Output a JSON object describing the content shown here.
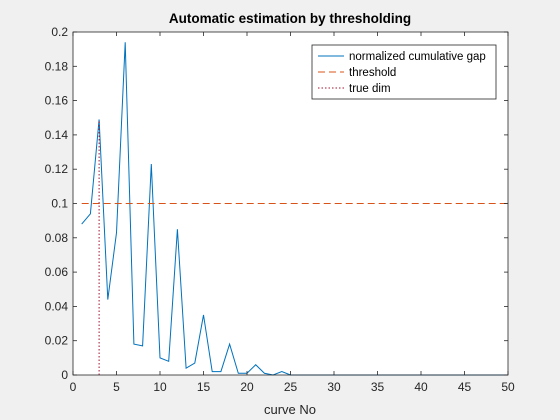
{
  "chart_data": {
    "type": "line",
    "title": "Automatic estimation by thresholding",
    "xlabel": "curve No",
    "ylabel": "",
    "xlim": [
      0,
      50
    ],
    "ylim": [
      0,
      0.2
    ],
    "xticks": [
      0,
      5,
      10,
      15,
      20,
      25,
      30,
      35,
      40,
      45,
      50
    ],
    "xtick_labels": [
      "0",
      "5",
      "10",
      "15",
      "20",
      "25",
      "30",
      "35",
      "40",
      "45",
      "50"
    ],
    "yticks": [
      0,
      0.02,
      0.04,
      0.06,
      0.08,
      0.1,
      0.12,
      0.14,
      0.16,
      0.18,
      0.2
    ],
    "ytick_labels": [
      "0",
      "0.02",
      "0.04",
      "0.06",
      "0.08",
      "0.1",
      "0.12",
      "0.14",
      "0.16",
      "0.18",
      "0.2"
    ],
    "grid": false,
    "legend_position": "top-right",
    "series": [
      {
        "name": "normalized cumulative gap",
        "style": "solid",
        "color": "#0072bd",
        "x": [
          1,
          2,
          3,
          4,
          5,
          6,
          7,
          8,
          9,
          10,
          11,
          12,
          13,
          14,
          15,
          16,
          17,
          18,
          19,
          20,
          21,
          22,
          23,
          24,
          25,
          26,
          27,
          28,
          29,
          30,
          31,
          32,
          33,
          34,
          35,
          36,
          37,
          38,
          39,
          40,
          41,
          42,
          43,
          44,
          45,
          46,
          47,
          48,
          49,
          50
        ],
        "y": [
          0.088,
          0.094,
          0.149,
          0.044,
          0.083,
          0.194,
          0.018,
          0.017,
          0.123,
          0.01,
          0.008,
          0.085,
          0.004,
          0.007,
          0.035,
          0.002,
          0.002,
          0.018,
          0.001,
          0.001,
          0.006,
          0.001,
          0.0,
          0.002,
          0.0,
          0.0,
          0.0,
          0.0,
          0.0,
          0.0,
          0.0,
          0.0,
          0.0,
          0.0,
          0.0,
          0.0,
          0.0,
          0.0,
          0.0,
          0.0,
          0.0,
          0.0,
          0.0,
          0.0,
          0.0,
          0.0,
          0.0,
          0.0,
          0.0,
          0.0
        ]
      },
      {
        "name": "threshold",
        "style": "dashed",
        "color": "#d95319",
        "x": [
          1,
          50
        ],
        "y": [
          0.1,
          0.1
        ]
      },
      {
        "name": "true dim",
        "style": "dotted",
        "color": "#a2142f",
        "x": [
          3,
          3
        ],
        "y": [
          0,
          0.149
        ]
      }
    ]
  }
}
